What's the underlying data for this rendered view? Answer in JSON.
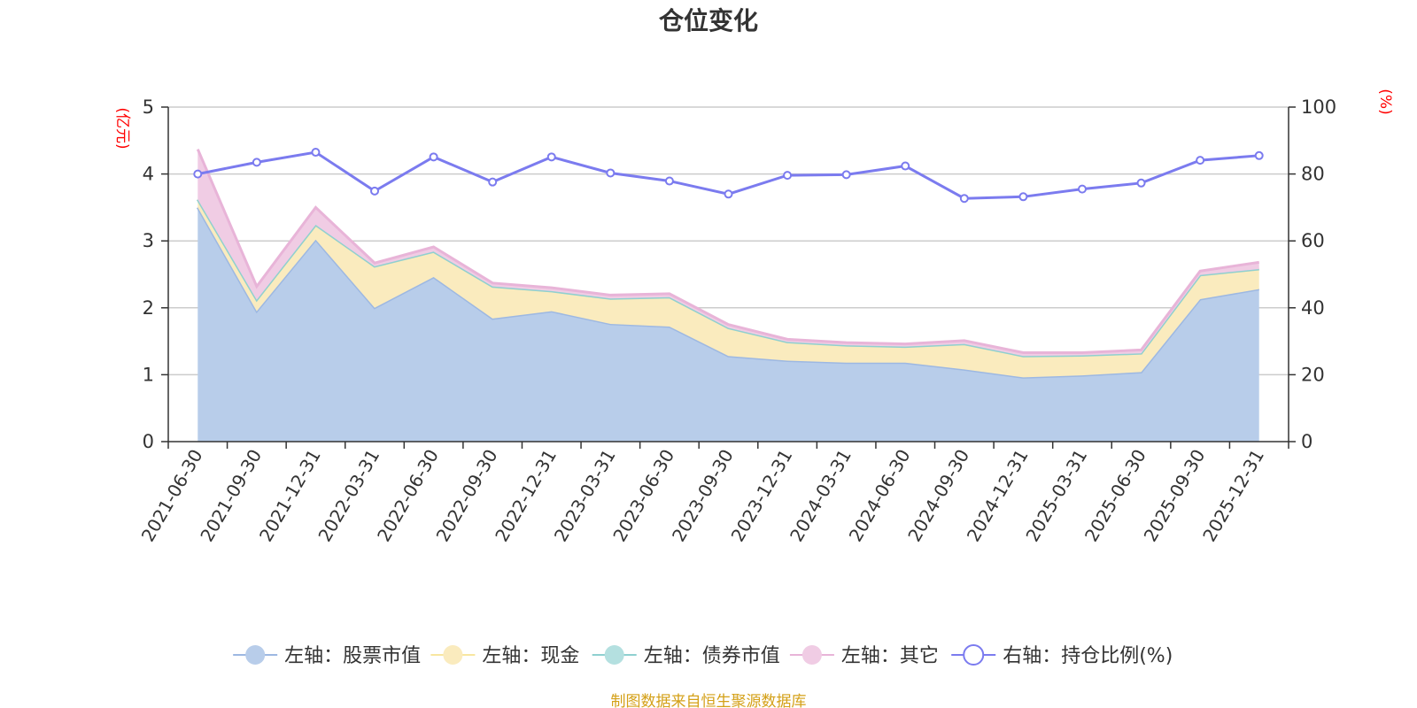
{
  "chart_data": {
    "type": "area",
    "title": "仓位变化",
    "left_unit": "(亿元)",
    "right_unit": "(%)",
    "categories": [
      "2021-06-30",
      "2021-09-30",
      "2021-12-31",
      "2022-03-31",
      "2022-06-30",
      "2022-09-30",
      "2022-12-31",
      "2023-03-31",
      "2023-06-30",
      "2023-09-30",
      "2023-12-31",
      "2024-03-31",
      "2024-06-30",
      "2024-09-30",
      "2024-12-31",
      "2025-03-31",
      "2025-06-30",
      "2025-09-30",
      "2025-12-31"
    ],
    "left_axis": {
      "min": 0,
      "max": 5,
      "ticks": [
        0,
        1,
        2,
        3,
        4,
        5
      ]
    },
    "right_axis": {
      "min": 0,
      "max": 100,
      "ticks": [
        0,
        20,
        40,
        60,
        80,
        100
      ]
    },
    "series": [
      {
        "name": "左轴：股票市值",
        "axis": "left",
        "stack": true,
        "color": "#9db8e2",
        "fill": "#b8cdea",
        "values": [
          3.5,
          1.95,
          3.02,
          2.0,
          2.46,
          1.84,
          1.95,
          1.76,
          1.72,
          1.28,
          1.21,
          1.18,
          1.18,
          1.08,
          0.96,
          0.99,
          1.04,
          2.13,
          2.28
        ]
      },
      {
        "name": "左轴：现金",
        "axis": "left",
        "stack": true,
        "color": "#f8e6a0",
        "fill": "#faebbe",
        "values": [
          0.12,
          0.17,
          0.22,
          0.62,
          0.38,
          0.48,
          0.3,
          0.38,
          0.44,
          0.42,
          0.28,
          0.26,
          0.24,
          0.38,
          0.32,
          0.3,
          0.28,
          0.36,
          0.3
        ]
      },
      {
        "name": "左轴：债券市值",
        "axis": "left",
        "stack": true,
        "color": "#8fd0d0",
        "fill": "#b4e0e0",
        "values": [
          0,
          0,
          0,
          0,
          0,
          0,
          0,
          0,
          0,
          0,
          0,
          0,
          0,
          0,
          0,
          0,
          0,
          0,
          0
        ]
      },
      {
        "name": "左轴：其它",
        "axis": "left",
        "stack": true,
        "color": "#e8b4d8",
        "fill": "#f0cce4",
        "values": [
          0.75,
          0.2,
          0.26,
          0.05,
          0.07,
          0.05,
          0.05,
          0.05,
          0.05,
          0.05,
          0.04,
          0.04,
          0.04,
          0.05,
          0.05,
          0.04,
          0.05,
          0.06,
          0.1
        ]
      },
      {
        "name": "右轴：持仓比例(%)",
        "axis": "right",
        "stack": false,
        "color": "#7b7bef",
        "values": [
          80,
          83.5,
          86.5,
          74.9,
          85.1,
          77.6,
          85.1,
          80.3,
          77.9,
          74,
          79.6,
          79.8,
          82.4,
          72.7,
          73.2,
          75.5,
          77.3,
          84.1,
          85.5
        ]
      }
    ],
    "legend_position": "bottom-center",
    "grid": true,
    "source": "制图数据来自恒生聚源数据库"
  }
}
